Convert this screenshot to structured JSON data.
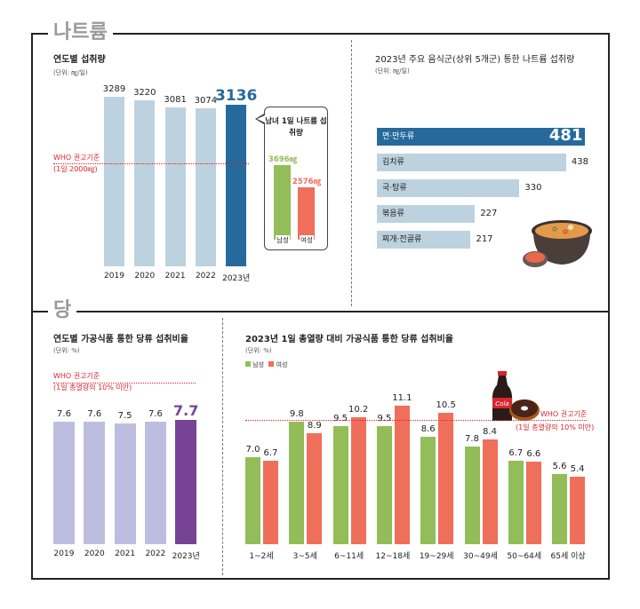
{
  "sections": {
    "sodium": "나트륨",
    "sugar": "당"
  },
  "chart_data": [
    {
      "type": "bar",
      "title": "연도별 섭취량",
      "unit": "(단위: ㎎/일)",
      "categories": [
        "2019",
        "2020",
        "2021",
        "2022",
        "2023년"
      ],
      "values": [
        3289,
        3220,
        3081,
        3074,
        3136
      ],
      "highlight_index": 4,
      "colors": {
        "bar": "#bdd2df",
        "highlight": "#266a9c"
      },
      "reference": {
        "value": 2000,
        "label": "WHO 권고기준",
        "sublabel": "(1일 2000㎎)",
        "color": "#d7262e"
      }
    },
    {
      "type": "bar",
      "title": "남녀 1일 나트륨 섭취량",
      "categories": [
        "남성",
        "여성"
      ],
      "values": [
        3696,
        2576
      ],
      "value_labels": [
        "3696㎎",
        "2576㎎"
      ],
      "colors": [
        "#92bd58",
        "#ef6f5b"
      ]
    },
    {
      "type": "bar",
      "orientation": "horizontal",
      "title": "2023년 주요 음식군(상위 5개군) 통한 나트륨 섭취량",
      "unit": "(단위: ㎎/일)",
      "categories": [
        "면·만두류",
        "김치류",
        "국·탕류",
        "볶음류",
        "찌개·전골류"
      ],
      "values": [
        481,
        438,
        330,
        227,
        217
      ],
      "highlight_index": 0,
      "colors": {
        "bar": "#bdd2df",
        "highlight": "#266a9c"
      }
    },
    {
      "type": "bar",
      "title": "연도별 가공식품 통한 당류 섭취비율",
      "unit": "(단위: %)",
      "categories": [
        "2019",
        "2020",
        "2021",
        "2022",
        "2023년"
      ],
      "values": [
        7.6,
        7.6,
        7.5,
        7.6,
        7.7
      ],
      "highlight_index": 4,
      "colors": {
        "bar": "#bdbedf",
        "highlight": "#774495"
      },
      "reference": {
        "value": 10,
        "label": "WHO 권고기준",
        "sublabel": "(1일 총열량의 10% 미만)",
        "color": "#d7262e"
      }
    },
    {
      "type": "bar",
      "title": "2023년 1일 총열량 대비 가공식품 통한 당류 섭취비율",
      "unit": "(단위: %)",
      "legend": "top-left",
      "categories": [
        "1~2세",
        "3~5세",
        "6~11세",
        "12~18세",
        "19~29세",
        "30~49세",
        "50~64세",
        "65세 이상"
      ],
      "series": [
        {
          "name": "남성",
          "color": "#92bd58",
          "values": [
            7.0,
            9.8,
            9.5,
            9.5,
            8.6,
            7.8,
            6.7,
            5.6
          ]
        },
        {
          "name": "여성",
          "color": "#ef6f5b",
          "values": [
            6.7,
            8.9,
            10.2,
            11.1,
            10.5,
            8.4,
            6.6,
            5.4
          ]
        }
      ],
      "reference": {
        "value": 10,
        "label": "WHO 권고기준",
        "sublabel": "(1일 총열량의 10% 미만)",
        "color": "#d7262e"
      }
    }
  ],
  "illustrations": {
    "bowl": "stew-bowl-icon",
    "cola": "cola-bottle-icon",
    "cola_text": "Cola",
    "donut": "donut-icon"
  }
}
